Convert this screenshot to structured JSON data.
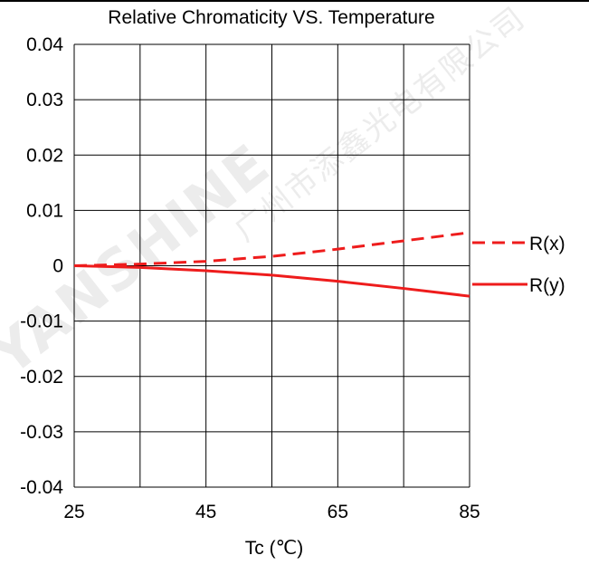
{
  "chart_data": {
    "type": "line",
    "title": "Relative Chromaticity VS. Temperature",
    "xlabel": "Tc (℃)",
    "ylabel": "",
    "x": [
      25,
      35,
      45,
      55,
      65,
      75,
      85
    ],
    "xlim": [
      25,
      85
    ],
    "xticks": [
      "25",
      "45",
      "65",
      "85"
    ],
    "ylim": [
      -0.04,
      0.04
    ],
    "yticks": [
      "0.04",
      "0.03",
      "0.02",
      "0.01",
      "0",
      "-0.01",
      "-0.02",
      "-0.03",
      "-0.04"
    ],
    "grid": true,
    "legend_position": "right",
    "series": [
      {
        "name": "R(x)",
        "style": "dashed",
        "color": "#ee1c1c",
        "values": [
          0.0,
          0.0003,
          0.0008,
          0.0017,
          0.003,
          0.0045,
          0.006
        ]
      },
      {
        "name": "R(y)",
        "style": "solid",
        "color": "#ee1c1c",
        "values": [
          0.0,
          -0.0003,
          -0.0009,
          -0.0017,
          -0.0028,
          -0.0041,
          -0.0055
        ]
      }
    ]
  },
  "watermark": {
    "brand": "YANSHINE",
    "company": "广州市添鑫光电有限公司"
  }
}
